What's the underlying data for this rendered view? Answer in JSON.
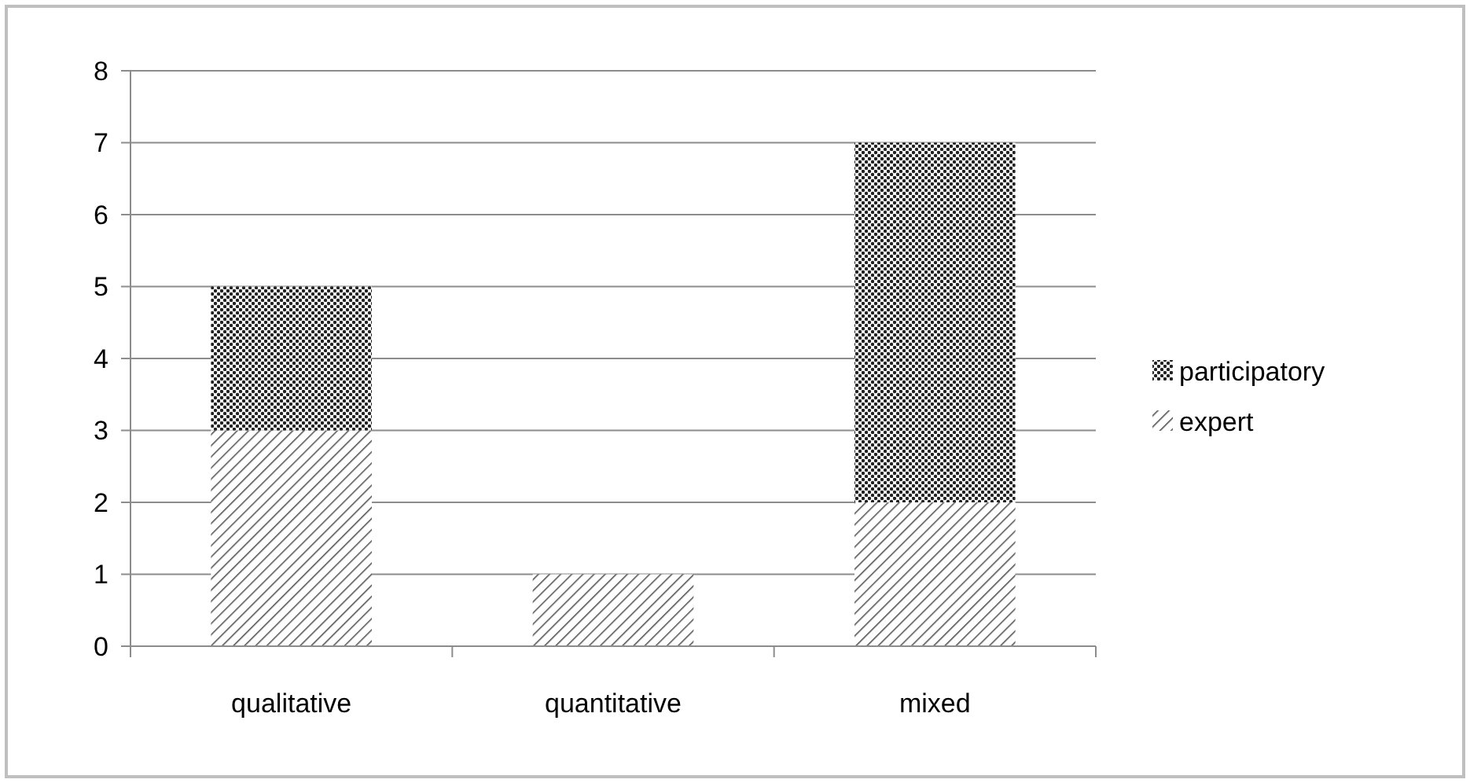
{
  "chart_data": {
    "type": "bar",
    "stacked": true,
    "categories": [
      "qualitative",
      "quantitative",
      "mixed"
    ],
    "series": [
      {
        "name": "expert",
        "color": "#555555",
        "values": [
          3,
          1,
          2
        ]
      },
      {
        "name": "participatory",
        "color": "#222222",
        "values": [
          2,
          0,
          5
        ]
      }
    ],
    "ylim": [
      0,
      8
    ],
    "yticks": [
      0,
      1,
      2,
      3,
      4,
      5,
      6,
      7,
      8
    ],
    "grid": "y",
    "legend": "right"
  }
}
